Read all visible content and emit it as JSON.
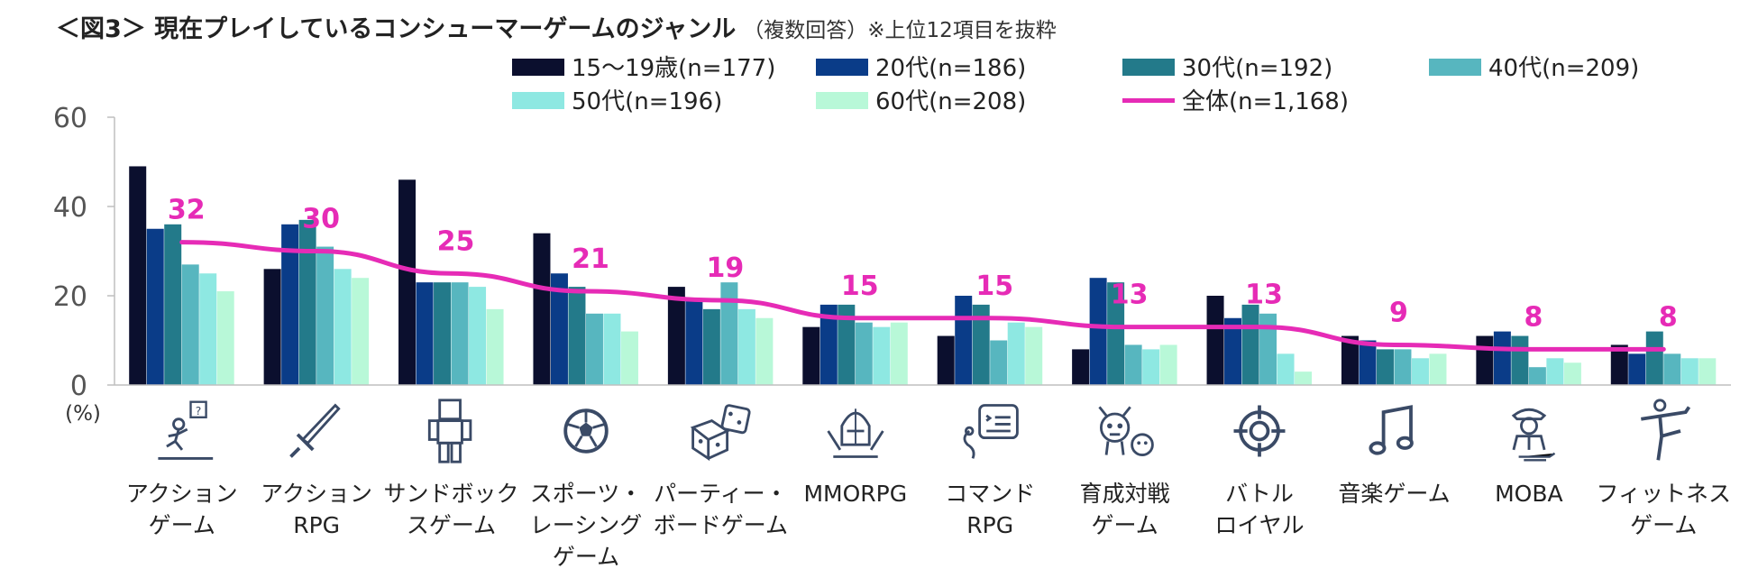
{
  "chart_data": {
    "type": "bar",
    "title": "＜図3＞ 現在プレイしているコンシューマーゲームのジャンル",
    "subtitle": "（複数回答）※上位12項目を抜粋",
    "ylabel": "(%)",
    "ylim": [
      0,
      60
    ],
    "yticks": [
      "0",
      "20",
      "40",
      "60"
    ],
    "categories": [
      [
        "アクション",
        "ゲーム"
      ],
      [
        "アクション",
        "RPG"
      ],
      [
        "サンドボック",
        "スゲーム"
      ],
      [
        "スポーツ・",
        "レーシング",
        "ゲーム"
      ],
      [
        "パーティー・",
        "ボードゲーム"
      ],
      [
        "MMORPG"
      ],
      [
        "コマンド",
        "RPG"
      ],
      [
        "育成対戦",
        "ゲーム"
      ],
      [
        "バトル",
        "ロイヤル"
      ],
      [
        "音楽ゲーム"
      ],
      [
        "MOBA"
      ],
      [
        "フィットネス",
        "ゲーム"
      ]
    ],
    "series": [
      {
        "name": "15～19歳(n=177)",
        "color": "#0b0f2e",
        "values": [
          49,
          26,
          46,
          34,
          22,
          13,
          11,
          8,
          20,
          11,
          11,
          9
        ]
      },
      {
        "name": "20代(n=186)",
        "color": "#0a3c88",
        "values": [
          35,
          36,
          23,
          25,
          19,
          18,
          20,
          24,
          15,
          10,
          12,
          7
        ]
      },
      {
        "name": "30代(n=192)",
        "color": "#237a8a",
        "values": [
          36,
          37,
          23,
          22,
          17,
          18,
          18,
          23,
          18,
          8,
          11,
          12
        ]
      },
      {
        "name": "40代(n=209)",
        "color": "#57b6bf",
        "values": [
          27,
          31,
          23,
          16,
          23,
          14,
          10,
          9,
          16,
          8,
          4,
          7
        ]
      },
      {
        "name": "50代(n=196)",
        "color": "#8ee8e2",
        "values": [
          25,
          26,
          22,
          16,
          17,
          13,
          14,
          8,
          7,
          6,
          6,
          6
        ]
      },
      {
        "name": "60代(n=208)",
        "color": "#b8f8d8",
        "values": [
          21,
          24,
          17,
          12,
          15,
          14,
          13,
          9,
          3,
          7,
          5,
          6
        ]
      }
    ],
    "line": {
      "name": "全体(n=1,168)",
      "color": "#e62bb6",
      "values": [
        32,
        30,
        25,
        21,
        19,
        15,
        15,
        13,
        13,
        9,
        8,
        8
      ]
    }
  },
  "icons": [
    "player-jump-icon",
    "sword-icon",
    "block-character-icon",
    "soccer-ball-icon",
    "dice-icon",
    "knight-helmet-icon",
    "command-menu-icon",
    "monster-icon",
    "crosshair-icon",
    "music-note-icon",
    "agent-icon",
    "fitness-pose-icon"
  ]
}
